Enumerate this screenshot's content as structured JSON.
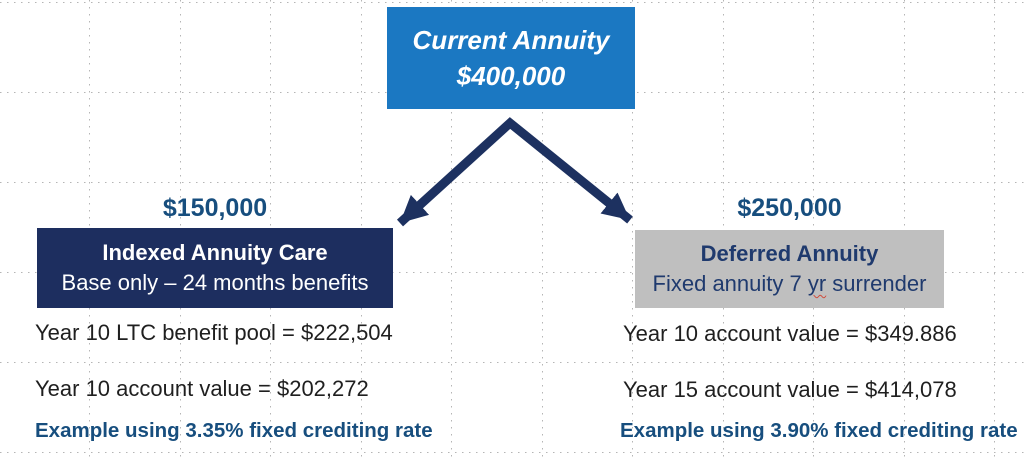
{
  "palette": {
    "top_box_blue": "#1b78c2",
    "dark_navy_box": "#1d2e5f",
    "gray_box": "#bfbfbf",
    "accent_blue_text": "#174e7e",
    "arrow_navy": "#1d3160",
    "box_navy_text": "#1f3a6e",
    "body_text": "#1f1f1f",
    "grid_dot": "#b5b5b5",
    "spellcheck_red": "#d04a3a",
    "white": "#ffffff"
  },
  "root_node": {
    "title": "Current Annuity",
    "amount": "$400,000"
  },
  "left_branch": {
    "amount": "$150,000",
    "box": {
      "title": "Indexed Annuity Care",
      "subtitle": "Base only – 24 months benefits"
    },
    "metrics": [
      "Year 10 LTC benefit pool = $222,504",
      "Year 10 account value = $202,272"
    ],
    "note": "Example using 3.35% fixed crediting rate"
  },
  "right_branch": {
    "amount": "$250,000",
    "box": {
      "title": "Deferred Annuity",
      "subtitle_pre": "Fixed annuity 7 ",
      "subtitle_flagged_word": "yr",
      "subtitle_post": " surrender"
    },
    "metrics": [
      "Year 10 account value = $349.886",
      "Year 15 account value = $414,078"
    ],
    "note": "Example using 3.90% fixed crediting rate"
  }
}
